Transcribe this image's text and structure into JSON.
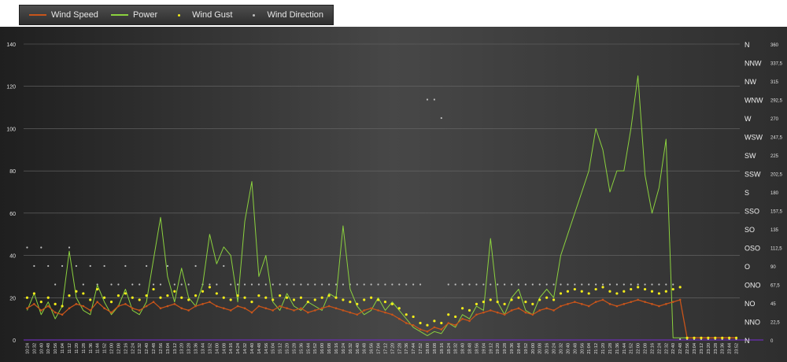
{
  "legend": {
    "items": [
      {
        "label": "Wind Speed",
        "color": "#c8541a",
        "kind": "line"
      },
      {
        "label": "Power",
        "color": "#8bd13e",
        "kind": "line"
      },
      {
        "label": "Wind Gust",
        "color": "#f2ec1a",
        "kind": "dot"
      },
      {
        "label": "Wind Direction",
        "color": "#bdbdbd",
        "kind": "dot"
      }
    ]
  },
  "chart_data": {
    "type": "line",
    "title": "",
    "xlabel": "",
    "ylabel": "",
    "ylim": [
      0,
      140
    ],
    "y_ticks": [
      0,
      20,
      40,
      60,
      80,
      100,
      120,
      140
    ],
    "y2lim": [
      0,
      360
    ],
    "y2_ticks": [
      "0",
      "22,5",
      "45",
      "67,5",
      "90",
      "112,5",
      "135",
      "157,5",
      "180",
      "202,5",
      "225",
      "247,5",
      "270",
      "292,5",
      "315",
      "337,5",
      "360"
    ],
    "direction_labels": [
      "N",
      "NNO",
      "NO",
      "ONO",
      "O",
      "OSO",
      "SO",
      "SSO",
      "S",
      "SSW",
      "SW",
      "WSW",
      "W",
      "WNW",
      "NW",
      "NNW",
      "N"
    ],
    "x_tick_labels": [
      "10:24",
      "10:32",
      "10:40",
      "10:48",
      "10:56",
      "11:04",
      "11:12",
      "11:20",
      "11:28",
      "11:36",
      "11:44",
      "11:52",
      "12:00",
      "12:08",
      "12:16",
      "12:24",
      "12:32",
      "12:40",
      "12:48",
      "12:56",
      "13:04",
      "13:12",
      "13:20",
      "13:28",
      "13:36",
      "13:44",
      "13:52",
      "14:00",
      "14:08",
      "14:16",
      "14:24",
      "14:32",
      "14:40",
      "14:48",
      "14:56",
      "15:04",
      "15:12",
      "15:20",
      "15:28",
      "15:36",
      "15:44",
      "15:52",
      "16:00",
      "16:08",
      "16:16",
      "16:24",
      "16:32",
      "16:40",
      "16:48",
      "16:56",
      "17:04",
      "17:12",
      "17:20",
      "17:28",
      "17:36",
      "17:44",
      "17:52",
      "18:00",
      "18:08",
      "18:16",
      "18:24",
      "18:32",
      "18:40",
      "18:48",
      "18:56",
      "19:04",
      "19:12",
      "19:20",
      "19:28",
      "19:36",
      "19:44",
      "19:52",
      "20:00",
      "20:08",
      "20:16",
      "20:24",
      "20:32",
      "20:40",
      "20:48",
      "20:56",
      "21:04",
      "21:12",
      "21:20",
      "21:28",
      "21:36",
      "21:44",
      "21:52",
      "22:00",
      "22:08",
      "22:16",
      "22:24",
      "22:32",
      "22:40",
      "22:48",
      "22:56",
      "23:04",
      "23:12",
      "23:20",
      "23:28",
      "23:36",
      "23:44",
      "23:52"
    ],
    "series": [
      {
        "name": "Wind Speed",
        "values": [
          15,
          17,
          14,
          16,
          13,
          12,
          15,
          17,
          16,
          14,
          18,
          15,
          13,
          16,
          17,
          15,
          14,
          16,
          18,
          15,
          16,
          17,
          15,
          14,
          16,
          17,
          18,
          16,
          15,
          14,
          16,
          15,
          13,
          16,
          15,
          14,
          16,
          15,
          14,
          15,
          13,
          14,
          15,
          16,
          15,
          14,
          13,
          12,
          14,
          15,
          14,
          13,
          12,
          10,
          8,
          7,
          5,
          4,
          6,
          5,
          8,
          7,
          10,
          9,
          12,
          13,
          14,
          13,
          12,
          14,
          15,
          13,
          12,
          14,
          15,
          14,
          16,
          17,
          18,
          17,
          16,
          18,
          19,
          17,
          16,
          17,
          18,
          19,
          18,
          17,
          16,
          17,
          18,
          19,
          1,
          1,
          1,
          1,
          1,
          1,
          1,
          1
        ]
      },
      {
        "name": "Power",
        "values": [
          14,
          22,
          12,
          18,
          10,
          16,
          42,
          20,
          14,
          12,
          26,
          18,
          12,
          16,
          24,
          14,
          12,
          18,
          38,
          58,
          30,
          18,
          34,
          20,
          16,
          26,
          50,
          36,
          44,
          40,
          18,
          56,
          75,
          30,
          40,
          18,
          14,
          22,
          16,
          14,
          18,
          16,
          14,
          22,
          20,
          54,
          24,
          16,
          12,
          14,
          20,
          14,
          18,
          14,
          10,
          6,
          4,
          2,
          4,
          3,
          8,
          6,
          12,
          10,
          16,
          14,
          48,
          18,
          12,
          20,
          24,
          14,
          12,
          20,
          24,
          20,
          40,
          50,
          60,
          70,
          80,
          100,
          90,
          70,
          80,
          80,
          100,
          125,
          78,
          60,
          72,
          95,
          1,
          1,
          1,
          1,
          1,
          1,
          1,
          1,
          1,
          1
        ]
      },
      {
        "name": "Wind Gust",
        "values": [
          20,
          22,
          18,
          20,
          17,
          16,
          21,
          23,
          22,
          19,
          24,
          20,
          18,
          21,
          22,
          20,
          19,
          21,
          24,
          20,
          21,
          23,
          20,
          19,
          21,
          23,
          25,
          22,
          20,
          19,
          21,
          20,
          18,
          21,
          20,
          19,
          21,
          20,
          19,
          20,
          18,
          19,
          20,
          21,
          20,
          19,
          18,
          17,
          19,
          20,
          19,
          18,
          17,
          15,
          12,
          11,
          8,
          7,
          9,
          8,
          12,
          11,
          15,
          14,
          17,
          18,
          19,
          18,
          17,
          19,
          20,
          18,
          17,
          19,
          20,
          19,
          22,
          23,
          24,
          23,
          22,
          24,
          25,
          23,
          22,
          23,
          24,
          25,
          24,
          23,
          22,
          23,
          24,
          25,
          1,
          1,
          1,
          1,
          1,
          1,
          1,
          1
        ]
      },
      {
        "name": "Wind Direction",
        "values": [
          112.5,
          90,
          112.5,
          90,
          67.5,
          90,
          112.5,
          90,
          67.5,
          90,
          67.5,
          90,
          67.5,
          67.5,
          90,
          67.5,
          67.5,
          90,
          67.5,
          67.5,
          90,
          67.5,
          67.5,
          67.5,
          90,
          67.5,
          67.5,
          67.5,
          90,
          67.5,
          67.5,
          67.5,
          67.5,
          67.5,
          67.5,
          67.5,
          67.5,
          67.5,
          67.5,
          67.5,
          67.5,
          67.5,
          67.5,
          67.5,
          67.5,
          67.5,
          67.5,
          67.5,
          67.5,
          67.5,
          67.5,
          67.5,
          67.5,
          67.5,
          67.5,
          67.5,
          67.5,
          292.5,
          292.5,
          270,
          67.5,
          67.5,
          67.5,
          67.5,
          67.5,
          67.5,
          67.5,
          67.5,
          67.5,
          67.5,
          67.5,
          67.5,
          67.5,
          67.5,
          67.5,
          67.5,
          67.5,
          67.5,
          67.5,
          67.5,
          67.5,
          67.5,
          67.5,
          67.5,
          67.5,
          67.5,
          67.5,
          67.5,
          67.5,
          67.5,
          67.5,
          67.5,
          67.5,
          1,
          1,
          1,
          1,
          1,
          1,
          1,
          1,
          1
        ]
      }
    ],
    "colors": {
      "background": "#3e3e3e",
      "grid": "#6a6a6a",
      "axis_text": "#e0e0e0",
      "baseline": "#6b2fb3"
    },
    "grid": true,
    "legend_position": "top-left"
  }
}
